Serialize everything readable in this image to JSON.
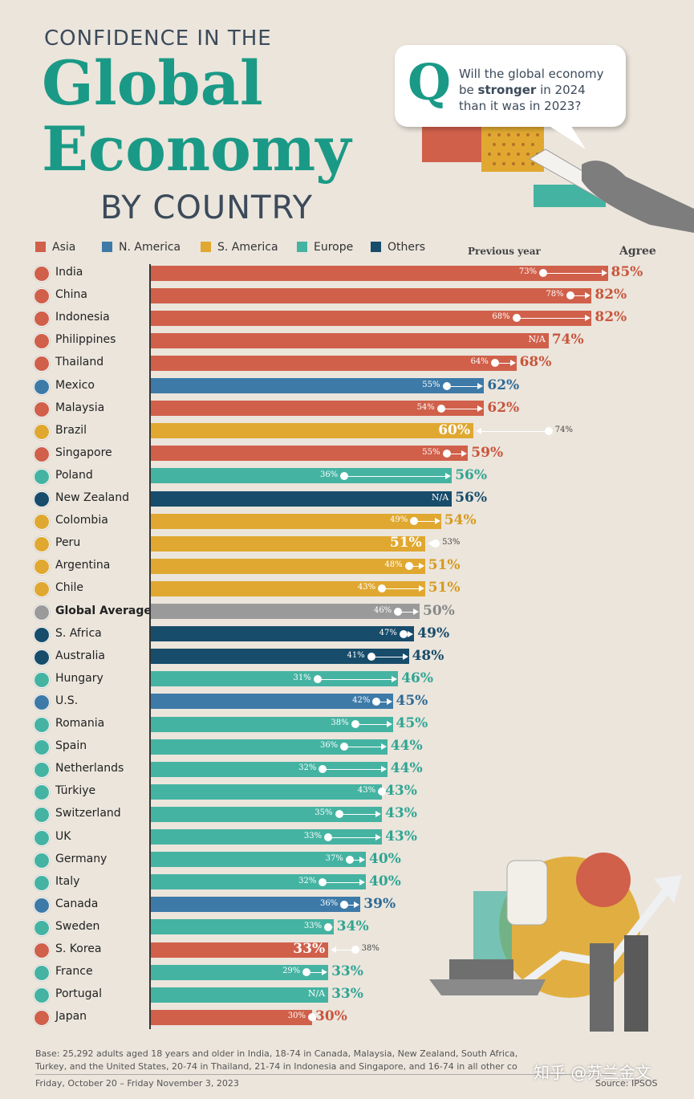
{
  "title": {
    "line1": "CONFIDENCE IN THE",
    "line2": "Global",
    "line3": "Economy",
    "line4": "BY COUNTRY"
  },
  "question": {
    "mark": "Q",
    "text_parts": [
      "Will the global economy",
      "be ",
      "stronger",
      " in 2024",
      "than it was in 2023?"
    ]
  },
  "legend": [
    {
      "label": "Asia",
      "color": "#d0604a"
    },
    {
      "label": "N. America",
      "color": "#3d7aa8"
    },
    {
      "label": "S. America",
      "color": "#e0a830"
    },
    {
      "label": "Europe",
      "color": "#45b3a2"
    },
    {
      "label": "Others",
      "color": "#174c6b"
    }
  ],
  "headers": {
    "previous": "Previous year",
    "agree": "Agree"
  },
  "footer": {
    "base1": "Base: 25,292 adults aged 18 years and older in India, 18-74 in Canada, Malaysia, New Zealand, South Africa,",
    "base2": "Turkey, and the United States, 20-74 in Thailand, 21-74 in Indonesia and Singapore, and 16-74 in all other co",
    "date": "Friday, October 20 – Friday November 3, 2023",
    "source": "Source: IPSOS",
    "watermark": "知乎 @苏兰金文"
  },
  "chart_data": {
    "type": "bar",
    "title": "Confidence in the Global Economy by Country",
    "question": "Will the global economy be stronger in 2024 than it was in 2023?",
    "value_unit": "% agree",
    "xlim": [
      0,
      100
    ],
    "rows": [
      {
        "country": "India",
        "region": "Asia",
        "value": 85,
        "label": "85%",
        "prev": 73,
        "prev_label": "73%"
      },
      {
        "country": "China",
        "region": "Asia",
        "value": 82,
        "label": "82%",
        "prev": 78,
        "prev_label": "78%"
      },
      {
        "country": "Indonesia",
        "region": "Asia",
        "value": 82,
        "label": "82%",
        "prev": 68,
        "prev_label": "68%"
      },
      {
        "country": "Philippines",
        "region": "Asia",
        "value": 74,
        "label": "74%",
        "prev": null,
        "prev_label": "N/A"
      },
      {
        "country": "Thailand",
        "region": "Asia",
        "value": 68,
        "label": "68%",
        "prev": 64,
        "prev_label": "64%"
      },
      {
        "country": "Mexico",
        "region": "N. America",
        "value": 62,
        "label": "62%",
        "prev": 55,
        "prev_label": "55%"
      },
      {
        "country": "Malaysia",
        "region": "Asia",
        "value": 62,
        "label": "62%",
        "prev": 54,
        "prev_label": "54%"
      },
      {
        "country": "Brazil",
        "region": "S. America",
        "value": 60,
        "label": "60%",
        "prev": 74,
        "prev_label": "74%"
      },
      {
        "country": "Singapore",
        "region": "Asia",
        "value": 59,
        "label": "59%",
        "prev": 55,
        "prev_label": "55%"
      },
      {
        "country": "Poland",
        "region": "Europe",
        "value": 56,
        "label": "56%",
        "prev": 36,
        "prev_label": "36%"
      },
      {
        "country": "New Zealand",
        "region": "Others",
        "value": 56,
        "label": "56%",
        "prev": null,
        "prev_label": "N/A"
      },
      {
        "country": "Colombia",
        "region": "S. America",
        "value": 54,
        "label": "54%",
        "prev": 49,
        "prev_label": "49%"
      },
      {
        "country": "Peru",
        "region": "S. America",
        "value": 51,
        "label": "51%",
        "prev": 53,
        "prev_label": "53%"
      },
      {
        "country": "Argentina",
        "region": "S. America",
        "value": 51,
        "label": "51%",
        "prev": 48,
        "prev_label": "48%"
      },
      {
        "country": "Chile",
        "region": "S. America",
        "value": 51,
        "label": "51%",
        "prev": 43,
        "prev_label": "43%"
      },
      {
        "country": "Global Average",
        "region": "Average",
        "value": 50,
        "label": "50%",
        "prev": 46,
        "prev_label": "46%"
      },
      {
        "country": "S. Africa",
        "region": "Others",
        "value": 49,
        "label": "49%",
        "prev": 47,
        "prev_label": "47%"
      },
      {
        "country": "Australia",
        "region": "Others",
        "value": 48,
        "label": "48%",
        "prev": 41,
        "prev_label": "41%"
      },
      {
        "country": "Hungary",
        "region": "Europe",
        "value": 46,
        "label": "46%",
        "prev": 31,
        "prev_label": "31%"
      },
      {
        "country": "U.S.",
        "region": "N. America",
        "value": 45,
        "label": "45%",
        "prev": 42,
        "prev_label": "42%"
      },
      {
        "country": "Romania",
        "region": "Europe",
        "value": 45,
        "label": "45%",
        "prev": 38,
        "prev_label": "38%"
      },
      {
        "country": "Spain",
        "region": "Europe",
        "value": 44,
        "label": "44%",
        "prev": 36,
        "prev_label": "36%"
      },
      {
        "country": "Netherlands",
        "region": "Europe",
        "value": 44,
        "label": "44%",
        "prev": 32,
        "prev_label": "32%"
      },
      {
        "country": "Türkiye",
        "region": "Europe",
        "value": 43,
        "label": "43%",
        "prev": 43,
        "prev_label": "43%"
      },
      {
        "country": "Switzerland",
        "region": "Europe",
        "value": 43,
        "label": "43%",
        "prev": 35,
        "prev_label": "35%"
      },
      {
        "country": "UK",
        "region": "Europe",
        "value": 43,
        "label": "43%",
        "prev": 33,
        "prev_label": "33%"
      },
      {
        "country": "Germany",
        "region": "Europe",
        "value": 40,
        "label": "40%",
        "prev": 37,
        "prev_label": "37%"
      },
      {
        "country": "Italy",
        "region": "Europe",
        "value": 40,
        "label": "40%",
        "prev": 32,
        "prev_label": "32%"
      },
      {
        "country": "Canada",
        "region": "N. America",
        "value": 39,
        "label": "39%",
        "prev": 36,
        "prev_label": "36%"
      },
      {
        "country": "Sweden",
        "region": "Europe",
        "value": 34,
        "label": "34%",
        "prev": 33,
        "prev_label": "33%"
      },
      {
        "country": "S. Korea",
        "region": "Asia",
        "value": 33,
        "label": "33%",
        "prev": 38,
        "prev_label": "38%"
      },
      {
        "country": "France",
        "region": "Europe",
        "value": 33,
        "label": "33%",
        "prev": 29,
        "prev_label": "29%"
      },
      {
        "country": "Portugal",
        "region": "Europe",
        "value": 33,
        "label": "33%",
        "prev": null,
        "prev_label": "N/A"
      },
      {
        "country": "Japan",
        "region": "Asia",
        "value": 30,
        "label": "30%",
        "prev": 30,
        "prev_label": "30%"
      }
    ]
  }
}
